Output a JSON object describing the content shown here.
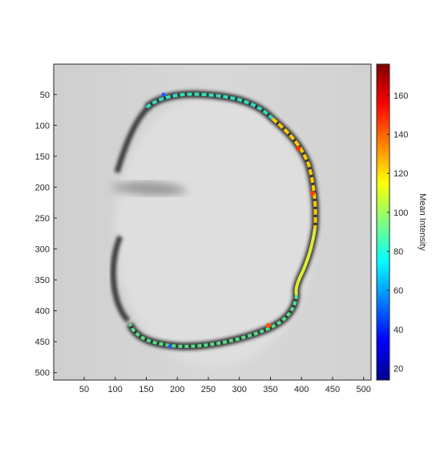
{
  "image": {
    "x_ticks": [
      "50",
      "100",
      "150",
      "200",
      "250",
      "300",
      "350",
      "400",
      "450",
      "500"
    ],
    "y_ticks": [
      "50",
      "100",
      "150",
      "200",
      "250",
      "300",
      "350",
      "400",
      "450",
      "500"
    ],
    "x_range": [
      1,
      512
    ],
    "y_range": [
      1,
      512
    ],
    "description_icon": "grayscale-microscopy-image-icon"
  },
  "colorbar": {
    "label": "Mean Intensity",
    "ticks": [
      "20",
      "40",
      "60",
      "80",
      "100",
      "120",
      "140",
      "160"
    ],
    "range": [
      14,
      176
    ],
    "colormap": "jet"
  },
  "colors": {
    "axis": "#262626",
    "background": "#ffffff"
  }
}
